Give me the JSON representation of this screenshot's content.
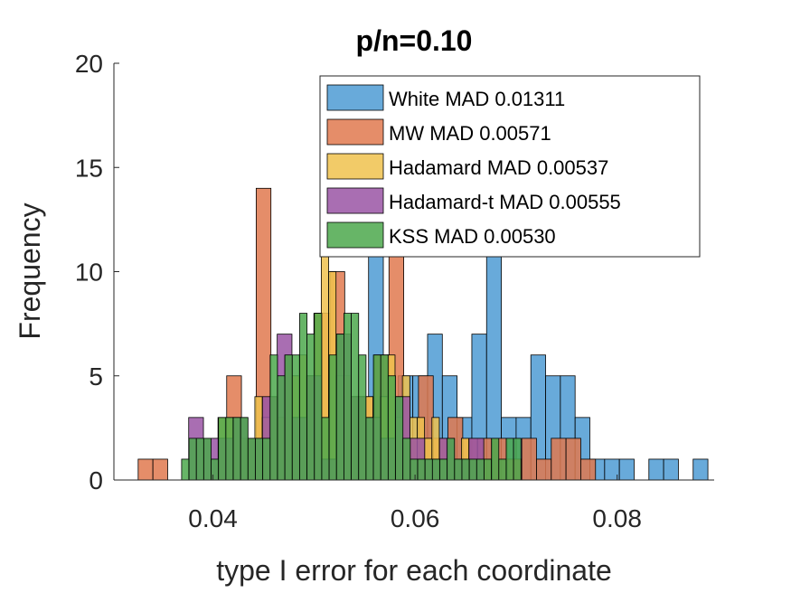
{
  "chart_data": {
    "type": "bar",
    "title": "p/n=0.10",
    "xlabel": "type I error for each coordinate",
    "ylabel": "Frequency",
    "xlim": [
      0.0302,
      0.0896
    ],
    "ylim": [
      0,
      20
    ],
    "xticks": [
      0.04,
      0.06,
      0.08
    ],
    "xtick_labels": [
      "0.04",
      "0.06",
      "0.08"
    ],
    "yticks": [
      0,
      5,
      10,
      15,
      20
    ],
    "ytick_labels": [
      "0",
      "5",
      "10",
      "15",
      "20"
    ],
    "legend_location": "top-right",
    "series": [
      {
        "name": "White MAD 0.01311",
        "color": "#4d9bd4",
        "bin_width": 0.00146,
        "x_start": 0.0554,
        "values": [
          11,
          4,
          5,
          5,
          7,
          5,
          3,
          7,
          11,
          3,
          3,
          6,
          5,
          5,
          3,
          1,
          1,
          1,
          0,
          1,
          1,
          0,
          1
        ]
      },
      {
        "name": "MW MAD 0.00571",
        "color": "#e1794f",
        "bin_width": 0.00146,
        "x_start": 0.0326,
        "values": [
          1,
          1,
          0,
          0,
          0,
          0,
          5,
          2,
          14,
          2,
          3,
          2,
          8,
          10,
          4,
          4,
          6,
          11,
          2,
          5,
          2,
          3,
          2,
          2,
          2,
          1,
          2,
          1,
          2,
          2,
          1
        ]
      },
      {
        "name": "Hadamard MAD 0.00537",
        "color": "#f0c24e",
        "bin_width": 0.00073,
        "x_start": 0.0405,
        "values": [
          3,
          3,
          3,
          2,
          2,
          4,
          3,
          4,
          3,
          6,
          5,
          6,
          5,
          8,
          17,
          10,
          5,
          5,
          4,
          4,
          4,
          3,
          4,
          6,
          3,
          5,
          3,
          3,
          2,
          3,
          2,
          1,
          1,
          2
        ]
      },
      {
        "name": "Hadamard-t MAD 0.00555",
        "color": "#9a55a5",
        "bin_width": 0.00146,
        "x_start": 0.0376,
        "values": [
          3,
          2,
          2,
          3,
          2,
          4,
          7,
          3,
          5,
          1,
          7,
          4,
          3,
          2,
          4,
          2,
          1,
          2,
          1,
          2
        ]
      },
      {
        "name": "KSS MAD 0.00530",
        "color": "#4ca84c",
        "bin_width": 0.00073,
        "x_start": 0.0369,
        "values": [
          1,
          2,
          2,
          2,
          1,
          3,
          3,
          3,
          3,
          2,
          2,
          2,
          6,
          5,
          6,
          6,
          8,
          7,
          8,
          3,
          6,
          7,
          8,
          8,
          6,
          3,
          6,
          6,
          5,
          4,
          2,
          1,
          1,
          1,
          1,
          1,
          2,
          1,
          1,
          1,
          1,
          1,
          2,
          1,
          2,
          2
        ]
      }
    ]
  }
}
